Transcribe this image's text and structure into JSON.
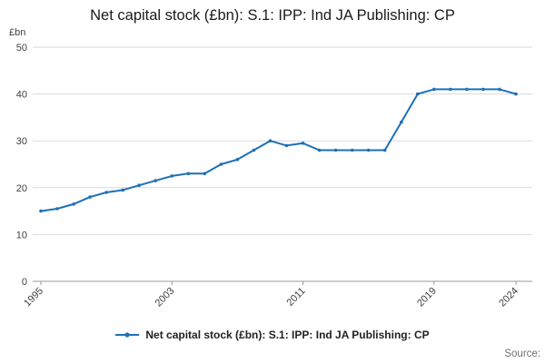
{
  "chart_data": {
    "type": "line",
    "title": "Net capital stock (£bn): S.1: IPP: Ind JA Publishing: CP",
    "ylabel": "£bn",
    "xlabel": "",
    "x": [
      1995,
      1996,
      1997,
      1998,
      1999,
      2000,
      2001,
      2002,
      2003,
      2004,
      2005,
      2006,
      2007,
      2008,
      2009,
      2010,
      2011,
      2012,
      2013,
      2014,
      2015,
      2016,
      2017,
      2018,
      2019,
      2020,
      2021,
      2022,
      2023,
      2024
    ],
    "series": [
      {
        "name": "Net capital stock (£bn): S.1: IPP: Ind JA Publishing: CP",
        "values": [
          15,
          15.5,
          16.5,
          18,
          19,
          19.5,
          20.5,
          21.5,
          22.5,
          23,
          23,
          25,
          26,
          28,
          30,
          29,
          29.5,
          28,
          28,
          28,
          28,
          28,
          34,
          40,
          41,
          41,
          41,
          41,
          41,
          40
        ]
      }
    ],
    "ylim": [
      0,
      50
    ],
    "yticks": [
      0,
      10,
      20,
      30,
      40,
      50
    ],
    "xticks": [
      1995,
      2003,
      2011,
      2019,
      2024
    ],
    "grid": true,
    "legend_position": "bottom",
    "line_color": "#1d70b8",
    "grid_color": "#d9d9d9",
    "axis_color": "#999999",
    "marker": "circle"
  },
  "footer": {
    "source_label": "Source:"
  }
}
